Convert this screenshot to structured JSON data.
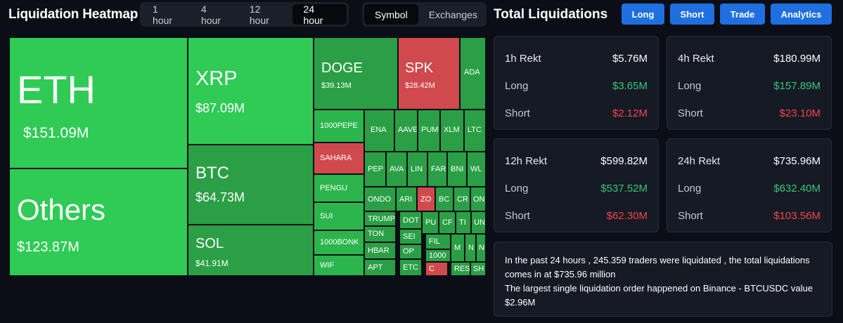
{
  "header": {
    "title": "Liquidation Heatmap",
    "timeframes": [
      {
        "label": "1 hour",
        "active": false
      },
      {
        "label": "4 hour",
        "active": false
      },
      {
        "label": "12 hour",
        "active": false
      },
      {
        "label": "24 hour",
        "active": true
      }
    ],
    "modes": [
      {
        "label": "Symbol",
        "active": true
      },
      {
        "label": "Exchanges",
        "active": false
      }
    ]
  },
  "side_header": {
    "title": "Total Liquidations",
    "buttons": [
      "Long",
      "Short",
      "Trade",
      "Analytics"
    ]
  },
  "colors": {
    "positive": "#2fcb55",
    "negative": "#d0494c",
    "long_text": "#39c57a",
    "short_text": "#f0454d",
    "button_blue": "#1f6fe0"
  },
  "heatmap": {
    "tiles": [
      {
        "symbol": "ETH",
        "value": "$151.09M"
      },
      {
        "symbol": "Others",
        "value": "$123.87M"
      },
      {
        "symbol": "XRP",
        "value": "$87.09M"
      },
      {
        "symbol": "BTC",
        "value": "$64.73M"
      },
      {
        "symbol": "SOL",
        "value": "$41.91M"
      },
      {
        "symbol": "DOGE",
        "value": "$39.13M"
      },
      {
        "symbol": "SPK",
        "value": "$28.42M"
      },
      {
        "symbol": "ADA",
        "value": ""
      },
      {
        "symbol": "1000PEPE",
        "value": ""
      },
      {
        "symbol": "SAHARA",
        "value": ""
      },
      {
        "symbol": "PENGU",
        "value": ""
      },
      {
        "symbol": "SUI",
        "value": ""
      },
      {
        "symbol": "1000BONK",
        "value": ""
      },
      {
        "symbol": "WIF",
        "value": ""
      },
      {
        "symbol": "ENA",
        "value": ""
      },
      {
        "symbol": "AAVE",
        "value": ""
      },
      {
        "symbol": "PUM",
        "value": ""
      },
      {
        "symbol": "XLM",
        "value": ""
      },
      {
        "symbol": "LTC",
        "value": ""
      },
      {
        "symbol": "PEP",
        "value": ""
      },
      {
        "symbol": "AVA",
        "value": ""
      },
      {
        "symbol": "LIN",
        "value": ""
      },
      {
        "symbol": "FAR",
        "value": ""
      },
      {
        "symbol": "BNI",
        "value": ""
      },
      {
        "symbol": "WL",
        "value": ""
      },
      {
        "symbol": "ONDO",
        "value": ""
      },
      {
        "symbol": "ARI",
        "value": ""
      },
      {
        "symbol": "ZO",
        "value": ""
      },
      {
        "symbol": "BC",
        "value": ""
      },
      {
        "symbol": "CR",
        "value": ""
      },
      {
        "symbol": "ON",
        "value": ""
      },
      {
        "symbol": "TRUMP",
        "value": ""
      },
      {
        "symbol": "DOT",
        "value": ""
      },
      {
        "symbol": "PU",
        "value": ""
      },
      {
        "symbol": "CF",
        "value": ""
      },
      {
        "symbol": "TI",
        "value": ""
      },
      {
        "symbol": "UN",
        "value": ""
      },
      {
        "symbol": "TON",
        "value": ""
      },
      {
        "symbol": "SEI",
        "value": ""
      },
      {
        "symbol": "FIL",
        "value": ""
      },
      {
        "symbol": "M",
        "value": ""
      },
      {
        "symbol": "N",
        "value": ""
      },
      {
        "symbol": "N",
        "value": ""
      },
      {
        "symbol": "HBAR",
        "value": ""
      },
      {
        "symbol": "OP",
        "value": ""
      },
      {
        "symbol": "1000",
        "value": ""
      },
      {
        "symbol": "APT",
        "value": ""
      },
      {
        "symbol": "ETC",
        "value": ""
      },
      {
        "symbol": "C",
        "value": ""
      },
      {
        "symbol": "RES",
        "value": ""
      },
      {
        "symbol": "SH",
        "value": ""
      }
    ]
  },
  "stats": [
    {
      "period": "1h Rekt",
      "total": "$5.76M",
      "long_label": "Long",
      "long": "$3.65M",
      "short_label": "Short",
      "short": "$2.12M"
    },
    {
      "period": "4h Rekt",
      "total": "$180.99M",
      "long_label": "Long",
      "long": "$157.89M",
      "short_label": "Short",
      "short": "$23.10M"
    },
    {
      "period": "12h Rekt",
      "total": "$599.82M",
      "long_label": "Long",
      "long": "$537.52M",
      "short_label": "Short",
      "short": "$62.30M"
    },
    {
      "period": "24h Rekt",
      "total": "$735.96M",
      "long_label": "Long",
      "long": "$632.40M",
      "short_label": "Short",
      "short": "$103.56M"
    }
  ],
  "summary": {
    "line1": "In the past 24 hours , 245.359 traders were liquidated , the total liquidations comes in at $735.96 million",
    "line2": "The largest single liquidation order happened on Binance - BTCUSDC value $2.96M"
  }
}
